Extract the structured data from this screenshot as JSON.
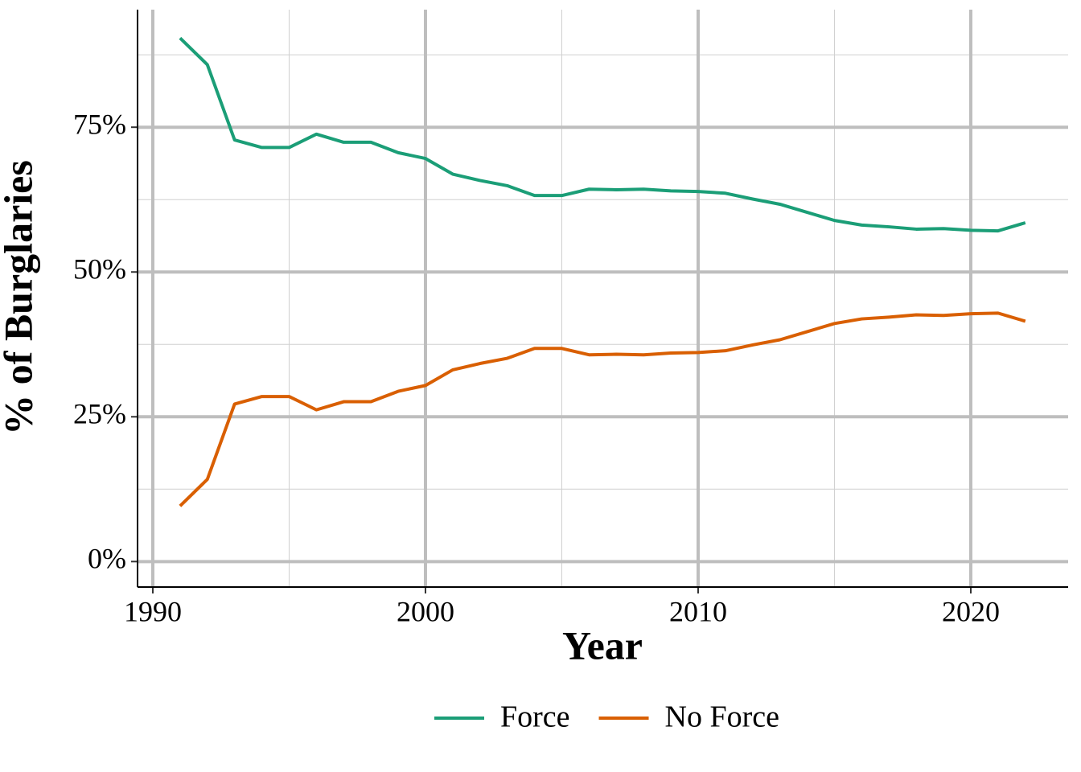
{
  "chart_data": {
    "type": "line",
    "x_label": "Year",
    "y_label": "% of Burglaries",
    "x": [
      1991,
      1992,
      1993,
      1994,
      1995,
      1996,
      1997,
      1998,
      1999,
      2000,
      2001,
      2002,
      2003,
      2004,
      2005,
      2006,
      2007,
      2008,
      2009,
      2010,
      2011,
      2012,
      2013,
      2014,
      2015,
      2016,
      2017,
      2018,
      2019,
      2020,
      2021,
      2022
    ],
    "series": [
      {
        "name": "Force",
        "color": "#1b9e77",
        "values": [
          90.4,
          85.8,
          72.8,
          71.5,
          71.5,
          73.8,
          72.4,
          72.4,
          70.6,
          69.6,
          66.9,
          65.8,
          64.9,
          63.2,
          63.2,
          64.3,
          64.2,
          64.3,
          64.0,
          63.9,
          63.6,
          62.6,
          61.7,
          60.3,
          58.9,
          58.1,
          57.8,
          57.4,
          57.5,
          57.2,
          57.1,
          58.5
        ]
      },
      {
        "name": "No Force",
        "color": "#d95f02",
        "values": [
          9.6,
          14.2,
          27.2,
          28.5,
          28.5,
          26.2,
          27.6,
          27.6,
          29.4,
          30.4,
          33.1,
          34.2,
          35.1,
          36.8,
          36.8,
          35.7,
          35.8,
          35.7,
          36.0,
          36.1,
          36.4,
          37.4,
          38.3,
          39.7,
          41.1,
          41.9,
          42.2,
          42.6,
          42.5,
          42.8,
          42.9,
          41.5
        ]
      }
    ],
    "xlim": [
      1989.44,
      2023.57
    ],
    "ylim": [
      -4.4,
      95.3
    ],
    "xticks": [
      1990,
      2000,
      2010,
      2020
    ],
    "yticks": [
      {
        "value": 0,
        "label": "0%"
      },
      {
        "value": 25,
        "label": "25%"
      },
      {
        "value": 50,
        "label": "50%"
      },
      {
        "value": 75,
        "label": "75%"
      }
    ],
    "x_minor_grid": [
      1995,
      2005,
      2015
    ],
    "y_minor_grid": [
      12.5,
      37.5,
      62.5,
      87.5
    ],
    "grid": true,
    "legend": "bottom"
  }
}
